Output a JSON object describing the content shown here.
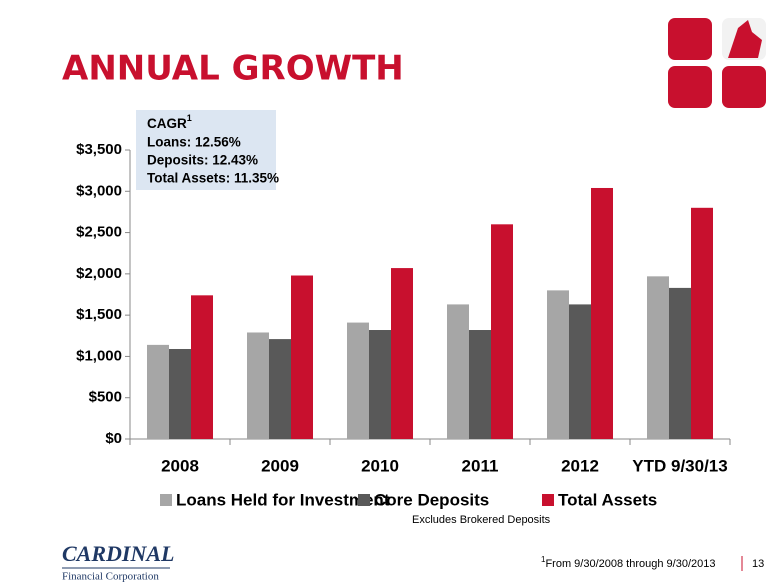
{
  "title": "ANNUAL GROWTH",
  "chart_data": {
    "type": "bar",
    "categories": [
      "2008",
      "2009",
      "2010",
      "2011",
      "2012",
      "YTD 9/30/13"
    ],
    "series": [
      {
        "name": "Loans Held for Investment",
        "color": "#a6a6a6",
        "values": [
          1140,
          1290,
          1410,
          1630,
          1800,
          1970
        ]
      },
      {
        "name": "Core Deposits",
        "color": "#595959",
        "values": [
          1090,
          1210,
          1320,
          1320,
          1630,
          1830
        ]
      },
      {
        "name": "Total Assets",
        "color": "#c8102e",
        "values": [
          1740,
          1980,
          2070,
          2600,
          3040,
          2800
        ]
      }
    ],
    "ylim": [
      0,
      3500
    ],
    "yticks": [
      {
        "value": 0,
        "label": "$0"
      },
      {
        "value": 500,
        "label": "$500"
      },
      {
        "value": 1000,
        "label": "$1,000"
      },
      {
        "value": 1500,
        "label": "$1,500"
      },
      {
        "value": 2000,
        "label": "$2,000"
      },
      {
        "value": 2500,
        "label": "$2,500"
      },
      {
        "value": 3000,
        "label": "$3,000"
      },
      {
        "value": 3500,
        "label": "$3,500"
      }
    ],
    "grid": false,
    "legend_note": "Excludes Brokered Deposits",
    "cagr_box": {
      "title": "CAGR",
      "mark": "1",
      "lines": [
        "Loans: 12.56%",
        "Deposits: 12.43%",
        "Total Assets: 11.35%"
      ]
    }
  },
  "footnote": {
    "mark": "1",
    "text": "From 9/30/2008 through 9/30/2013"
  },
  "page_number": "13",
  "logo": {
    "name": "CARDINAL",
    "subtitle": "Financial Corporation"
  }
}
